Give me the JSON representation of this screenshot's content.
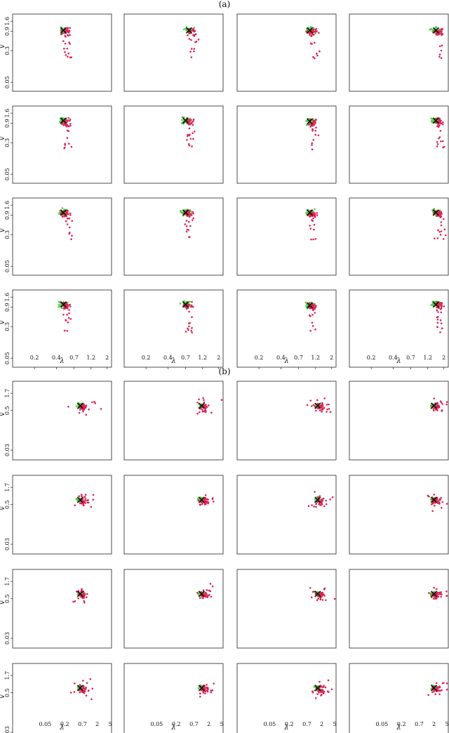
{
  "chart_data": [
    {
      "type": "scatter",
      "panel_label": "(a)",
      "rows": 4,
      "cols": 4,
      "xlabel": "λ",
      "ylabel": "v",
      "x_scale": "log",
      "y_scale": "log",
      "xlim": [
        0.1,
        2.3
      ],
      "ylim": [
        0.03,
        2.4
      ],
      "x_ticks": [
        "0.2",
        "0.4",
        "0.7",
        "1.2",
        "2"
      ],
      "x_tick_values": [
        0.2,
        0.4,
        0.7,
        1.2,
        2
      ],
      "y_ticks": [
        "0.05",
        "0.3",
        "0.9",
        "1.6"
      ],
      "y_tick_values": [
        0.05,
        0.3,
        0.9,
        1.6
      ],
      "y_ticks_last_row": [
        "0.05",
        "0.3",
        "0.9",
        "1.6"
      ],
      "colors": {
        "green": "#55cc44",
        "red": "#dd2255",
        "marker": "#111111"
      },
      "clusters": [
        [
          [
            0.5,
            0.95
          ],
          [
            0.78,
            0.95
          ],
          [
            1.0,
            0.95
          ],
          [
            1.55,
            0.95
          ]
        ],
        [
          [
            0.5,
            1.05
          ],
          [
            0.7,
            1.05
          ],
          [
            1.0,
            1.0
          ],
          [
            1.55,
            1.05
          ]
        ],
        [
          [
            0.5,
            1.05
          ],
          [
            0.7,
            1.05
          ],
          [
            1.0,
            1.05
          ],
          [
            1.55,
            1.05
          ]
        ],
        [
          [
            0.5,
            1.05
          ],
          [
            0.7,
            1.05
          ],
          [
            1.0,
            1.0
          ],
          [
            1.55,
            1.05
          ]
        ]
      ],
      "grid": false
    },
    {
      "type": "scatter",
      "panel_label": "(b)",
      "rows": 4,
      "cols": 4,
      "xlabel": "λ",
      "ylabel": "v",
      "x_scale": "log",
      "y_scale": "log",
      "xlim": [
        0.005,
        5.5
      ],
      "ylim": [
        0.015,
        4.0
      ],
      "x_ticks": [
        "0.05",
        "0.2",
        "0.7",
        "2",
        "5"
      ],
      "x_tick_values": [
        0.05,
        0.2,
        0.7,
        2,
        5
      ],
      "y_ticks": [
        "0.03",
        "0.5",
        "1.7"
      ],
      "y_tick_values": [
        0.03,
        0.5,
        1.7
      ],
      "colors": {
        "green": "#55cc44",
        "red": "#dd2255",
        "marker": "#111111"
      },
      "clusters": [
        [
          [
            0.6,
            0.7
          ],
          [
            1.2,
            0.7
          ],
          [
            1.5,
            0.7
          ],
          [
            2.0,
            0.7
          ]
        ],
        [
          [
            0.6,
            0.7
          ],
          [
            1.2,
            0.7
          ],
          [
            1.5,
            0.7
          ],
          [
            2.0,
            0.7
          ]
        ],
        [
          [
            0.6,
            0.7
          ],
          [
            1.2,
            0.7
          ],
          [
            1.5,
            0.7
          ],
          [
            2.0,
            0.7
          ]
        ],
        [
          [
            0.6,
            0.7
          ],
          [
            1.2,
            0.7
          ],
          [
            1.5,
            0.7
          ],
          [
            2.0,
            0.7
          ]
        ]
      ],
      "grid": false
    }
  ]
}
